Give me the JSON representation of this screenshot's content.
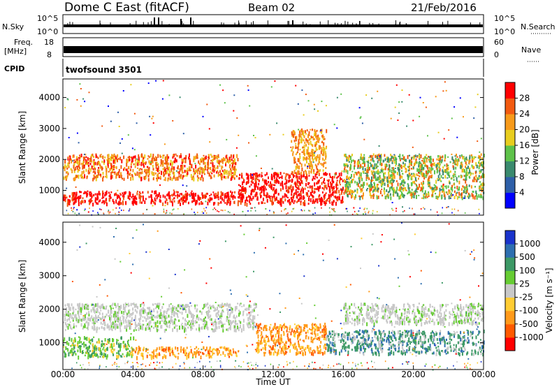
{
  "header": {
    "title": "Dome C East (fitACF)",
    "beam": "Beam 02",
    "date": "21/Feb/2016"
  },
  "strips": {
    "nsky_label": "N.Sky",
    "nsky_ticks": [
      "10^5",
      "10^0"
    ],
    "nsearch_label": "N.Search",
    "freq_label_1": "Freq.",
    "freq_label_2": "[MHz]",
    "freq_ticks": [
      "18",
      "8"
    ],
    "nave_ticks": [
      "60",
      "0"
    ],
    "nave_label": "Nave",
    "cpid_label": "CPID",
    "cpid_value": "twofsound 3501"
  },
  "colors": {
    "power": [
      "#0000ff",
      "#2e5fa8",
      "#3a8a6e",
      "#5ec24a",
      "#e8cd1e",
      "#f79a1a",
      "#f25a10",
      "#ff0000"
    ],
    "velocity": [
      "#ff0000",
      "#ff5a00",
      "#ff9a1a",
      "#ffcc33",
      "#c8c8c8",
      "#66cc33",
      "#3d9966",
      "#2e6fb0",
      "#1a33cc"
    ],
    "ground": "#c8c8c8"
  },
  "chart_data": [
    {
      "type": "heatmap",
      "title": "Power",
      "xlabel": "",
      "ylabel": "Slant Range [km]",
      "x_range_hours": [
        0,
        24
      ],
      "ylim": [
        200,
        4600
      ],
      "y_ticks": [
        "1000",
        "2000",
        "3000",
        "4000"
      ],
      "x_ticks": [
        "00:00",
        "04:00",
        "08:00",
        "12:00",
        "16:00",
        "20:00",
        "00:00"
      ],
      "colorbar": {
        "label": "Power [dB]",
        "ticks": [
          "4",
          "8",
          "12",
          "16",
          "20",
          "24",
          "28"
        ]
      },
      "bands": [
        {
          "t_start": 0,
          "t_end": 10,
          "range_km": [
            1400,
            2200
          ],
          "dominant": "orange-red"
        },
        {
          "t_start": 0,
          "t_end": 10,
          "range_km": [
            600,
            1000
          ],
          "dominant": "red"
        },
        {
          "t_start": 10,
          "t_end": 16,
          "range_km": [
            600,
            1600
          ],
          "dominant": "red"
        },
        {
          "t_start": 13,
          "t_end": 15,
          "range_km": [
            1600,
            3000
          ],
          "dominant": "orange"
        },
        {
          "t_start": 16,
          "t_end": 24,
          "range_km": [
            800,
            2200
          ],
          "dominant": "green"
        }
      ]
    },
    {
      "type": "heatmap",
      "title": "Velocity",
      "xlabel": "Time UT",
      "ylabel": "Slant Range [km]",
      "x_range_hours": [
        0,
        24
      ],
      "ylim": [
        200,
        4600
      ],
      "y_ticks": [
        "1000",
        "2000",
        "3000",
        "4000"
      ],
      "x_ticks": [
        "00:00",
        "04:00",
        "08:00",
        "12:00",
        "16:00",
        "20:00",
        "00:00"
      ],
      "colorbar": {
        "label": "Velocity [m s⁻¹]",
        "ticks": [
          "1000",
          "500",
          "100",
          "25",
          "-25",
          "-100",
          "-500",
          "-1000"
        ]
      },
      "bands": [
        {
          "t_start": 0,
          "t_end": 11,
          "range_km": [
            1400,
            2200
          ],
          "dominant": "grey"
        },
        {
          "t_start": 0,
          "t_end": 4,
          "range_km": [
            600,
            1200
          ],
          "dominant": "green"
        },
        {
          "t_start": 4,
          "t_end": 10,
          "range_km": [
            600,
            900
          ],
          "dominant": "orange"
        },
        {
          "t_start": 11,
          "t_end": 15,
          "range_km": [
            700,
            1600
          ],
          "dominant": "orange"
        },
        {
          "t_start": 15,
          "t_end": 24,
          "range_km": [
            700,
            1400
          ],
          "dominant": "blue-green"
        },
        {
          "t_start": 16,
          "t_end": 24,
          "range_km": [
            1600,
            2200
          ],
          "dominant": "grey"
        }
      ]
    }
  ]
}
